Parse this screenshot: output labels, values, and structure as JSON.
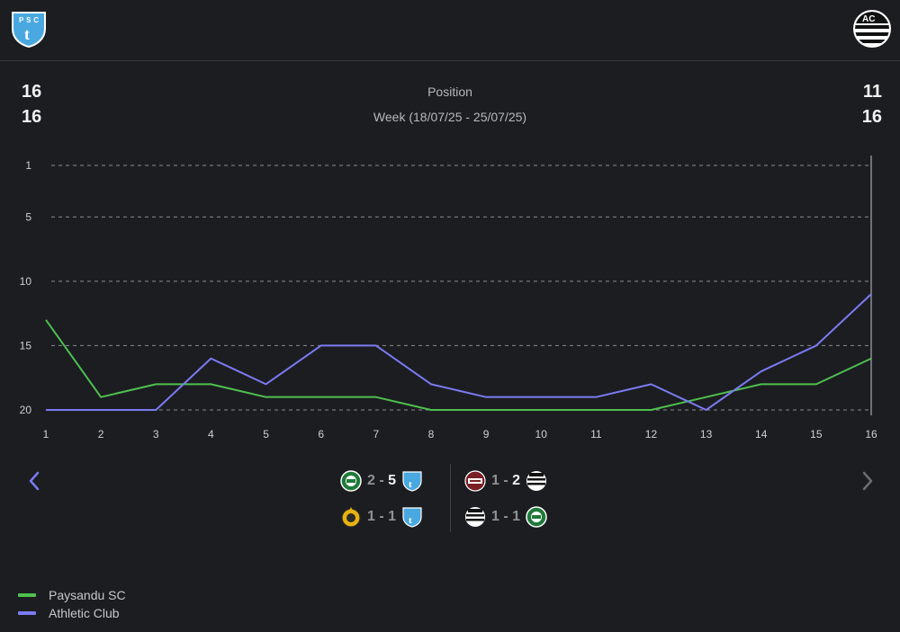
{
  "header": {
    "team_left_icon": "paysandu-crest-icon",
    "team_right_icon": "athletic-crest-icon",
    "team_left_crest_text": "PSC",
    "team_right_crest_text": "AC"
  },
  "summary": {
    "position_label": "Position",
    "week_label": "Week (18/07/25 - 25/07/25)",
    "left_position": "16",
    "left_week": "16",
    "right_position": "11",
    "right_week": "16"
  },
  "colors": {
    "team_a": "#4fc04f",
    "team_b": "#7b7bf2",
    "grid": "#8a8d92",
    "bg": "#1b1d21"
  },
  "chart_data": {
    "type": "line",
    "title": "Position",
    "xlabel": "",
    "ylabel": "",
    "x": [
      1,
      2,
      3,
      4,
      5,
      6,
      7,
      8,
      9,
      10,
      11,
      12,
      13,
      14,
      15,
      16
    ],
    "y_ticks": [
      1,
      5,
      10,
      15,
      20
    ],
    "ylim": [
      1,
      20
    ],
    "y_inverted": true,
    "series": [
      {
        "name": "Paysandu SC",
        "color": "#4fc04f",
        "values": [
          13,
          19,
          18,
          18,
          19,
          19,
          19,
          20,
          20,
          20,
          20,
          20,
          19,
          18,
          18,
          16
        ]
      },
      {
        "name": "Athletic Club",
        "color": "#7b7bf2",
        "values": [
          20,
          20,
          20,
          16,
          18,
          15,
          15,
          18,
          19,
          19,
          19,
          18,
          20,
          17,
          15,
          11
        ]
      }
    ],
    "selected_x": 16
  },
  "matches": {
    "left": [
      {
        "home_icon": "coritiba-crest-icon",
        "home_score": "2",
        "sep": "-",
        "away_score": "5",
        "away_icon": "paysandu-crest-icon",
        "winner": "away"
      },
      {
        "home_icon": "amazonas-crest-icon",
        "home_score": "1",
        "sep": "-",
        "away_score": "1",
        "away_icon": "paysandu-crest-icon",
        "winner": "none"
      }
    ],
    "right": [
      {
        "home_icon": "ferroviaria-crest-icon",
        "home_score": "1",
        "sep": "-",
        "away_score": "2",
        "away_icon": "athletic-crest-icon",
        "winner": "away"
      },
      {
        "home_icon": "athletic-crest-icon",
        "home_score": "1",
        "sep": "-",
        "away_score": "1",
        "away_icon": "coritiba-crest-icon",
        "winner": "none"
      }
    ]
  },
  "nav": {
    "prev_icon": "chevron-left-icon",
    "next_icon": "chevron-right-icon"
  },
  "legend": [
    {
      "label": "Paysandu SC",
      "color": "#4fc04f"
    },
    {
      "label": "Athletic Club",
      "color": "#7b7bf2"
    }
  ]
}
